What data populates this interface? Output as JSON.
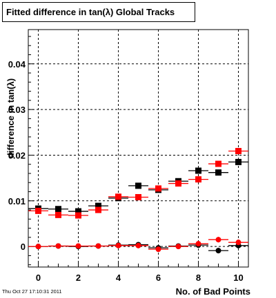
{
  "title": "Fitted difference in tan(λ)  Global Tracks",
  "footer": "Thu Oct 27 17:10:31 2011",
  "chart_data": {
    "type": "scatter",
    "xlabel": "No. of Bad Points",
    "ylabel": "difference in tan(λ)",
    "xlim": [
      -0.5,
      10.5
    ],
    "ylim": [
      -0.0045,
      0.0475
    ],
    "grid": true,
    "x_ticks": [
      0,
      2,
      4,
      6,
      8,
      10
    ],
    "x_tick_labels": [
      "0",
      "2",
      "4",
      "6",
      "8",
      "10"
    ],
    "y_ticks": [
      0,
      0.01,
      0.02,
      0.03,
      0.04
    ],
    "y_tick_labels": [
      "0",
      "0.01",
      "0.02",
      "0.03",
      "0.04"
    ],
    "x_error": 0.5,
    "series": [
      {
        "marker": "square",
        "color": "#000000",
        "x": [
          0,
          1,
          2,
          3,
          4,
          5,
          6,
          7,
          8,
          9,
          10
        ],
        "values": [
          0.0083,
          0.0082,
          0.0077,
          0.0089,
          0.0106,
          0.0133,
          0.0124,
          0.0143,
          0.0166,
          0.0162,
          0.0185
        ],
        "y_error": [
          0.0003,
          0.0003,
          0.0003,
          0.0003,
          0.0003,
          0.0003,
          0.0004,
          0.0004,
          0.0005,
          0.0006,
          0.0006
        ]
      },
      {
        "marker": "square",
        "color": "#ff0000",
        "x": [
          0,
          1,
          2,
          3,
          4,
          5,
          6,
          7,
          8,
          9,
          10
        ],
        "values": [
          0.0078,
          0.0069,
          0.0068,
          0.008,
          0.0109,
          0.0108,
          0.0127,
          0.0138,
          0.0147,
          0.0181,
          0.0209
        ],
        "y_error": [
          0.0003,
          0.0003,
          0.0003,
          0.0003,
          0.0003,
          0.0003,
          0.0004,
          0.0004,
          0.0005,
          0.0006,
          0.0006
        ]
      },
      {
        "marker": "circle",
        "color": "#000000",
        "x": [
          0,
          1,
          2,
          3,
          4,
          5,
          6,
          7,
          8,
          9,
          10
        ],
        "values": [
          0.0,
          0.0001,
          0.0,
          0.0001,
          0.0003,
          0.0004,
          -0.0003,
          0.0001,
          0.0003,
          -0.0009,
          0.0002
        ],
        "y_error": [
          0.0002,
          0.0002,
          0.0002,
          0.0002,
          0.0002,
          0.0003,
          0.0004,
          0.0004,
          0.0005,
          0.0006,
          0.0006
        ]
      },
      {
        "marker": "circle",
        "color": "#ff0000",
        "x": [
          0,
          1,
          2,
          3,
          4,
          5,
          6,
          7,
          8,
          9,
          10
        ],
        "values": [
          0.0,
          0.0001,
          0.0001,
          0.0001,
          0.0002,
          0.0002,
          -0.0006,
          0.0,
          0.0006,
          0.0015,
          0.0009
        ],
        "y_error": [
          0.0002,
          0.0002,
          0.0002,
          0.0002,
          0.0002,
          0.0003,
          0.0004,
          0.0004,
          0.0005,
          0.0006,
          0.0006
        ]
      }
    ]
  }
}
